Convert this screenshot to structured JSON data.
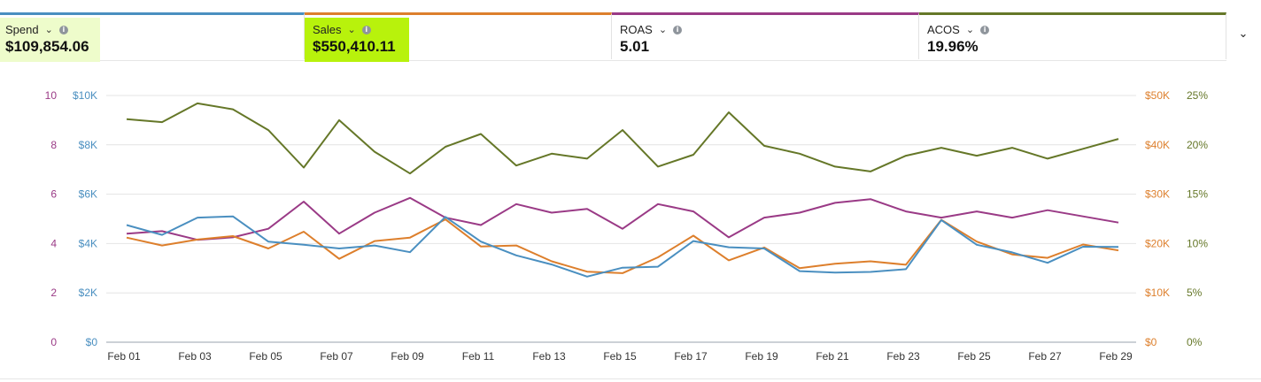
{
  "metrics": [
    {
      "label": "Spend",
      "value": "$109,854.06",
      "color": "#4a8fc0",
      "highlight": "#eefccb"
    },
    {
      "label": "Sales",
      "value": "$550,410.11",
      "color": "#dd7f2c",
      "highlight": "#b8f20c"
    },
    {
      "label": "ROAS",
      "value": "5.01",
      "color": "#9a3a86",
      "highlight": null
    },
    {
      "label": "ACOS",
      "value": "19.96%",
      "color": "#657728",
      "highlight": null
    }
  ],
  "chevron_glyph": "⌄",
  "chart_data": {
    "type": "line",
    "x": [
      "Feb 01",
      "Feb 02",
      "Feb 03",
      "Feb 04",
      "Feb 05",
      "Feb 06",
      "Feb 07",
      "Feb 08",
      "Feb 09",
      "Feb 10",
      "Feb 11",
      "Feb 12",
      "Feb 13",
      "Feb 14",
      "Feb 15",
      "Feb 16",
      "Feb 17",
      "Feb 18",
      "Feb 19",
      "Feb 20",
      "Feb 21",
      "Feb 22",
      "Feb 23",
      "Feb 24",
      "Feb 25",
      "Feb 26",
      "Feb 27",
      "Feb 28",
      "Feb 29"
    ],
    "x_tick_labels": [
      "Feb 01",
      "Feb 03",
      "Feb 05",
      "Feb 07",
      "Feb 09",
      "Feb 11",
      "Feb 13",
      "Feb 15",
      "Feb 17",
      "Feb 19",
      "Feb 21",
      "Feb 23",
      "Feb 25",
      "Feb 27",
      "Feb 29"
    ],
    "axes": {
      "roas": {
        "side": "left",
        "ticks": [
          "0",
          "2",
          "4",
          "6",
          "8",
          "10"
        ],
        "range": [
          0,
          10
        ],
        "color": "#9a3a86"
      },
      "spend": {
        "side": "left",
        "ticks": [
          "$0",
          "$2K",
          "$4K",
          "$6K",
          "$8K",
          "$10K"
        ],
        "range": [
          0,
          10000
        ],
        "color": "#4a8fc0"
      },
      "sales": {
        "side": "right",
        "ticks": [
          "$0",
          "$10K",
          "$20K",
          "$30K",
          "$40K",
          "$50K"
        ],
        "range": [
          0,
          50000
        ],
        "color": "#dd7f2c"
      },
      "acos": {
        "side": "right",
        "ticks": [
          "0%",
          "5%",
          "10%",
          "15%",
          "20%",
          "25%"
        ],
        "range": [
          0,
          25
        ],
        "color": "#657728"
      }
    },
    "grid": true,
    "series": [
      {
        "name": "Spend",
        "axis": "spend",
        "color": "#4a8fc0",
        "values": [
          4750,
          4350,
          5050,
          5100,
          4080,
          3950,
          3800,
          3920,
          3650,
          5080,
          4080,
          3520,
          3150,
          2660,
          3020,
          3060,
          4100,
          3850,
          3800,
          2880,
          2820,
          2850,
          2960,
          4950,
          3950,
          3640,
          3220,
          3870,
          3860
        ]
      },
      {
        "name": "Sales",
        "axis": "sales",
        "color": "#dd7f2c",
        "values": [
          21200,
          19600,
          20800,
          21500,
          19000,
          22400,
          16900,
          20500,
          21200,
          24900,
          19400,
          19600,
          16400,
          14300,
          14000,
          17200,
          21600,
          16600,
          19200,
          15000,
          15900,
          16400,
          15700,
          24800,
          20400,
          17800,
          17100,
          19800,
          18600
        ]
      },
      {
        "name": "ROAS",
        "axis": "roas",
        "color": "#9a3a86",
        "values": [
          4.4,
          4.5,
          4.15,
          4.25,
          4.6,
          5.7,
          4.4,
          5.25,
          5.85,
          5.05,
          4.75,
          5.6,
          5.25,
          5.4,
          4.6,
          5.6,
          5.3,
          4.25,
          5.05,
          5.25,
          5.65,
          5.8,
          5.3,
          5.05,
          5.3,
          5.05,
          5.35,
          5.1,
          4.85
        ]
      },
      {
        "name": "ACOS",
        "axis": "acos",
        "color": "#657728",
        "values": [
          22.6,
          22.3,
          24.2,
          23.6,
          21.5,
          17.7,
          22.5,
          19.3,
          17.1,
          19.8,
          21.1,
          17.9,
          19.1,
          18.6,
          21.5,
          17.8,
          19.0,
          23.3,
          19.9,
          19.1,
          17.8,
          17.3,
          18.9,
          19.7,
          18.9,
          19.7,
          18.6,
          19.6,
          20.6
        ]
      }
    ]
  }
}
